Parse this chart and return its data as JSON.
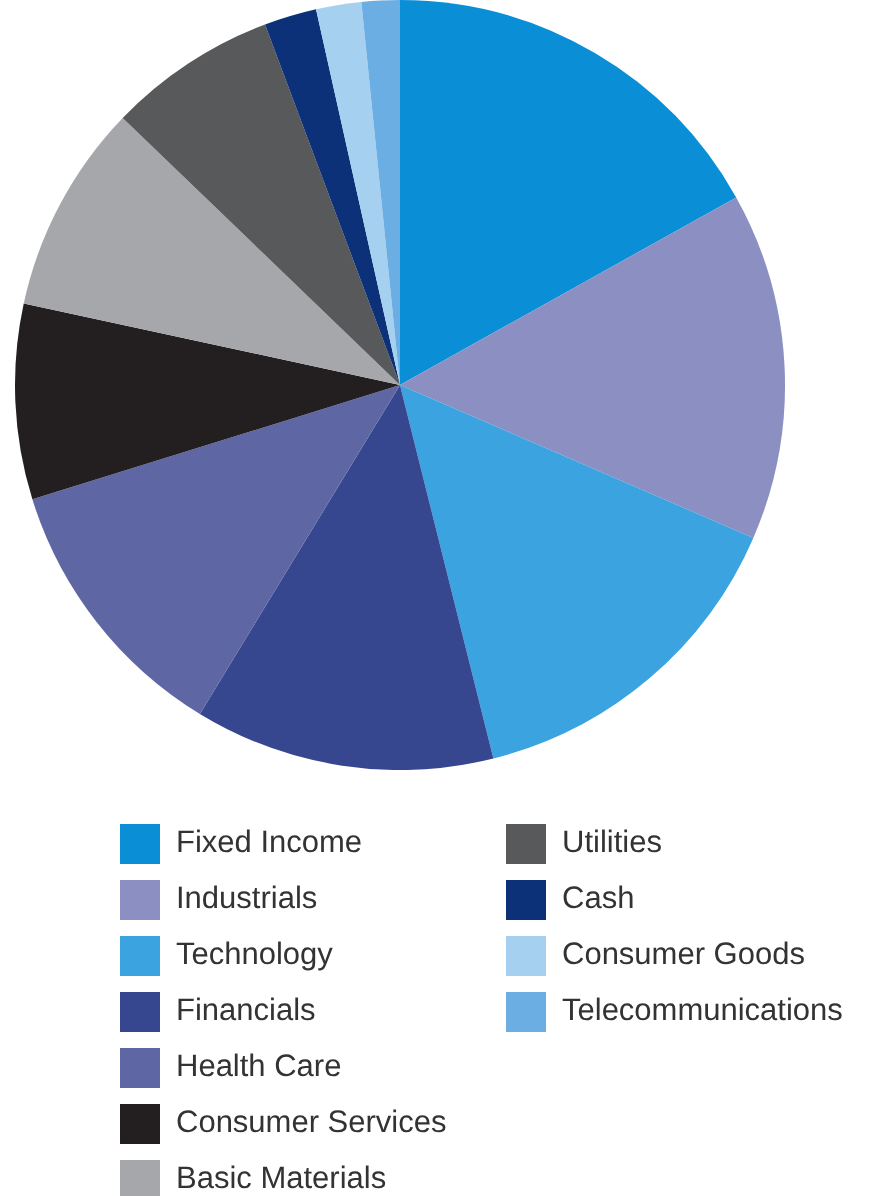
{
  "chart_data": {
    "type": "pie",
    "categories": [
      "Fixed Income",
      "Industrials",
      "Technology",
      "Financials",
      "Health Care",
      "Consumer Services",
      "Basic Materials",
      "Utilities",
      "Cash",
      "Consumer Goods",
      "Telecommunications"
    ],
    "values": [
      16.9,
      14.6,
      14.6,
      12.6,
      11.5,
      8.2,
      8.8,
      7.1,
      2.2,
      1.9,
      1.6
    ],
    "colors": [
      "#0a8fd6",
      "#8b8fc2",
      "#3aa3e0",
      "#37478f",
      "#5e66a3",
      "#231f20",
      "#a5a7aa",
      "#58595b",
      "#0d3178",
      "#a6d0ef",
      "#6aaee3"
    ],
    "legend": "bottom"
  }
}
